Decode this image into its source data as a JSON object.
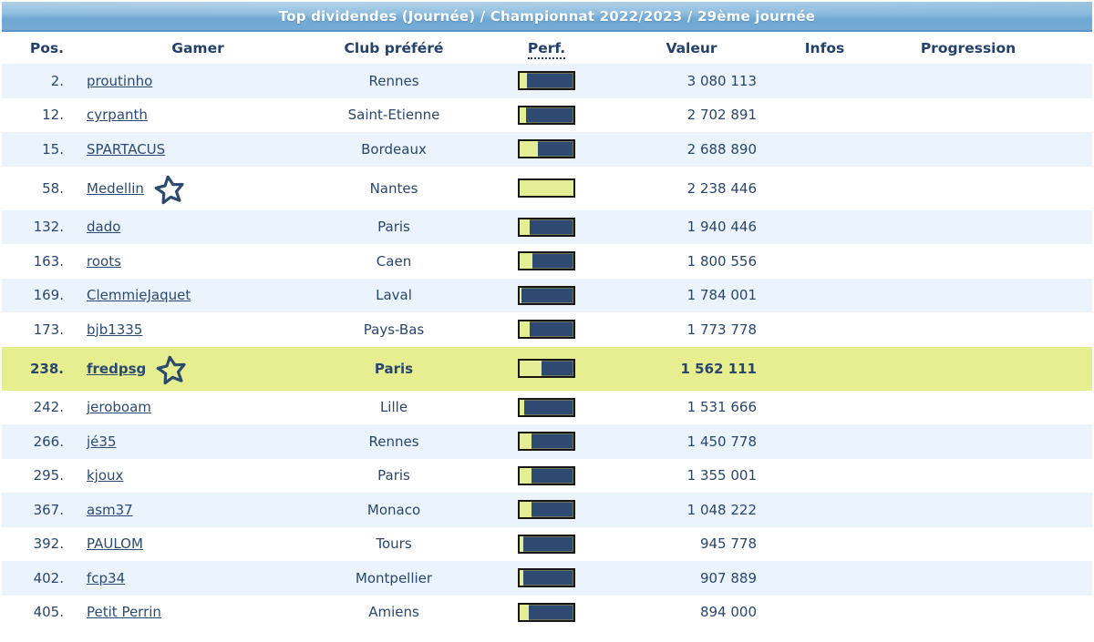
{
  "title": "Top dividendes (Journée) / Championnat 2022/2023 / 29ème journée",
  "colors": {
    "banner_top": "#9cc5e2",
    "banner_bottom": "#74abd6",
    "banner_border": "#5e94c4",
    "text_navy": "#28466e",
    "row_alt_blue": "#ebf3fd",
    "highlight_row": "#e7ee8f",
    "bar_fill_yellow": "#e3ee96",
    "bar_rest_navy": "#2e4a72"
  },
  "table": {
    "columns": {
      "pos": "Pos.",
      "gamer": "Gamer",
      "club": "Club préféré",
      "perf": "Perf.",
      "value": "Valeur",
      "infos": "Infos",
      "progression": "Progression"
    },
    "rows": [
      {
        "pos": "2.",
        "gamer": "proutinho",
        "club": "Rennes",
        "perf_pct": 14,
        "value": "3 080 113",
        "starred": false,
        "highlighted": false
      },
      {
        "pos": "12.",
        "gamer": "cyrpanth",
        "club": "Saint-Etienne",
        "perf_pct": 12,
        "value": "2 702 891",
        "starred": false,
        "highlighted": false
      },
      {
        "pos": "15.",
        "gamer": "SPARTACUS",
        "club": "Bordeaux",
        "perf_pct": 34,
        "value": "2 688 890",
        "starred": false,
        "highlighted": false
      },
      {
        "pos": "58.",
        "gamer": "Medellin",
        "club": "Nantes",
        "perf_pct": 100,
        "value": "2 238 446",
        "starred": true,
        "highlighted": false
      },
      {
        "pos": "132.",
        "gamer": "dado",
        "club": "Paris",
        "perf_pct": 18,
        "value": "1 940 446",
        "starred": false,
        "highlighted": false
      },
      {
        "pos": "163.",
        "gamer": "roots",
        "club": "Caen",
        "perf_pct": 24,
        "value": "1 800 556",
        "starred": false,
        "highlighted": false
      },
      {
        "pos": "169.",
        "gamer": "ClemmieJaquet",
        "club": "Laval",
        "perf_pct": 4,
        "value": "1 784 001",
        "starred": false,
        "highlighted": false
      },
      {
        "pos": "173.",
        "gamer": "bjb1335",
        "club": "Pays-Bas",
        "perf_pct": 18,
        "value": "1 773 778",
        "starred": false,
        "highlighted": false
      },
      {
        "pos": "238.",
        "gamer": "fredpsg",
        "club": "Paris",
        "perf_pct": 40,
        "value": "1 562 111",
        "starred": true,
        "highlighted": true
      },
      {
        "pos": "242.",
        "gamer": "jeroboam",
        "club": "Lille",
        "perf_pct": 9,
        "value": "1 531 666",
        "starred": false,
        "highlighted": false
      },
      {
        "pos": "266.",
        "gamer": "jé35",
        "club": "Rennes",
        "perf_pct": 22,
        "value": "1 450 778",
        "starred": false,
        "highlighted": false
      },
      {
        "pos": "295.",
        "gamer": "kjoux",
        "club": "Paris",
        "perf_pct": 22,
        "value": "1 355 001",
        "starred": false,
        "highlighted": false
      },
      {
        "pos": "367.",
        "gamer": "asm37",
        "club": "Monaco",
        "perf_pct": 22,
        "value": "1 048 222",
        "starred": false,
        "highlighted": false
      },
      {
        "pos": "392.",
        "gamer": "PAULOM",
        "club": "Tours",
        "perf_pct": 7,
        "value": "945 778",
        "starred": false,
        "highlighted": false
      },
      {
        "pos": "402.",
        "gamer": "fcp34",
        "club": "Montpellier",
        "perf_pct": 7,
        "value": "907 889",
        "starred": false,
        "highlighted": false
      },
      {
        "pos": "405.",
        "gamer": "Petit Perrin",
        "club": "Amiens",
        "perf_pct": 17,
        "value": "894 000",
        "starred": false,
        "highlighted": false
      }
    ]
  }
}
